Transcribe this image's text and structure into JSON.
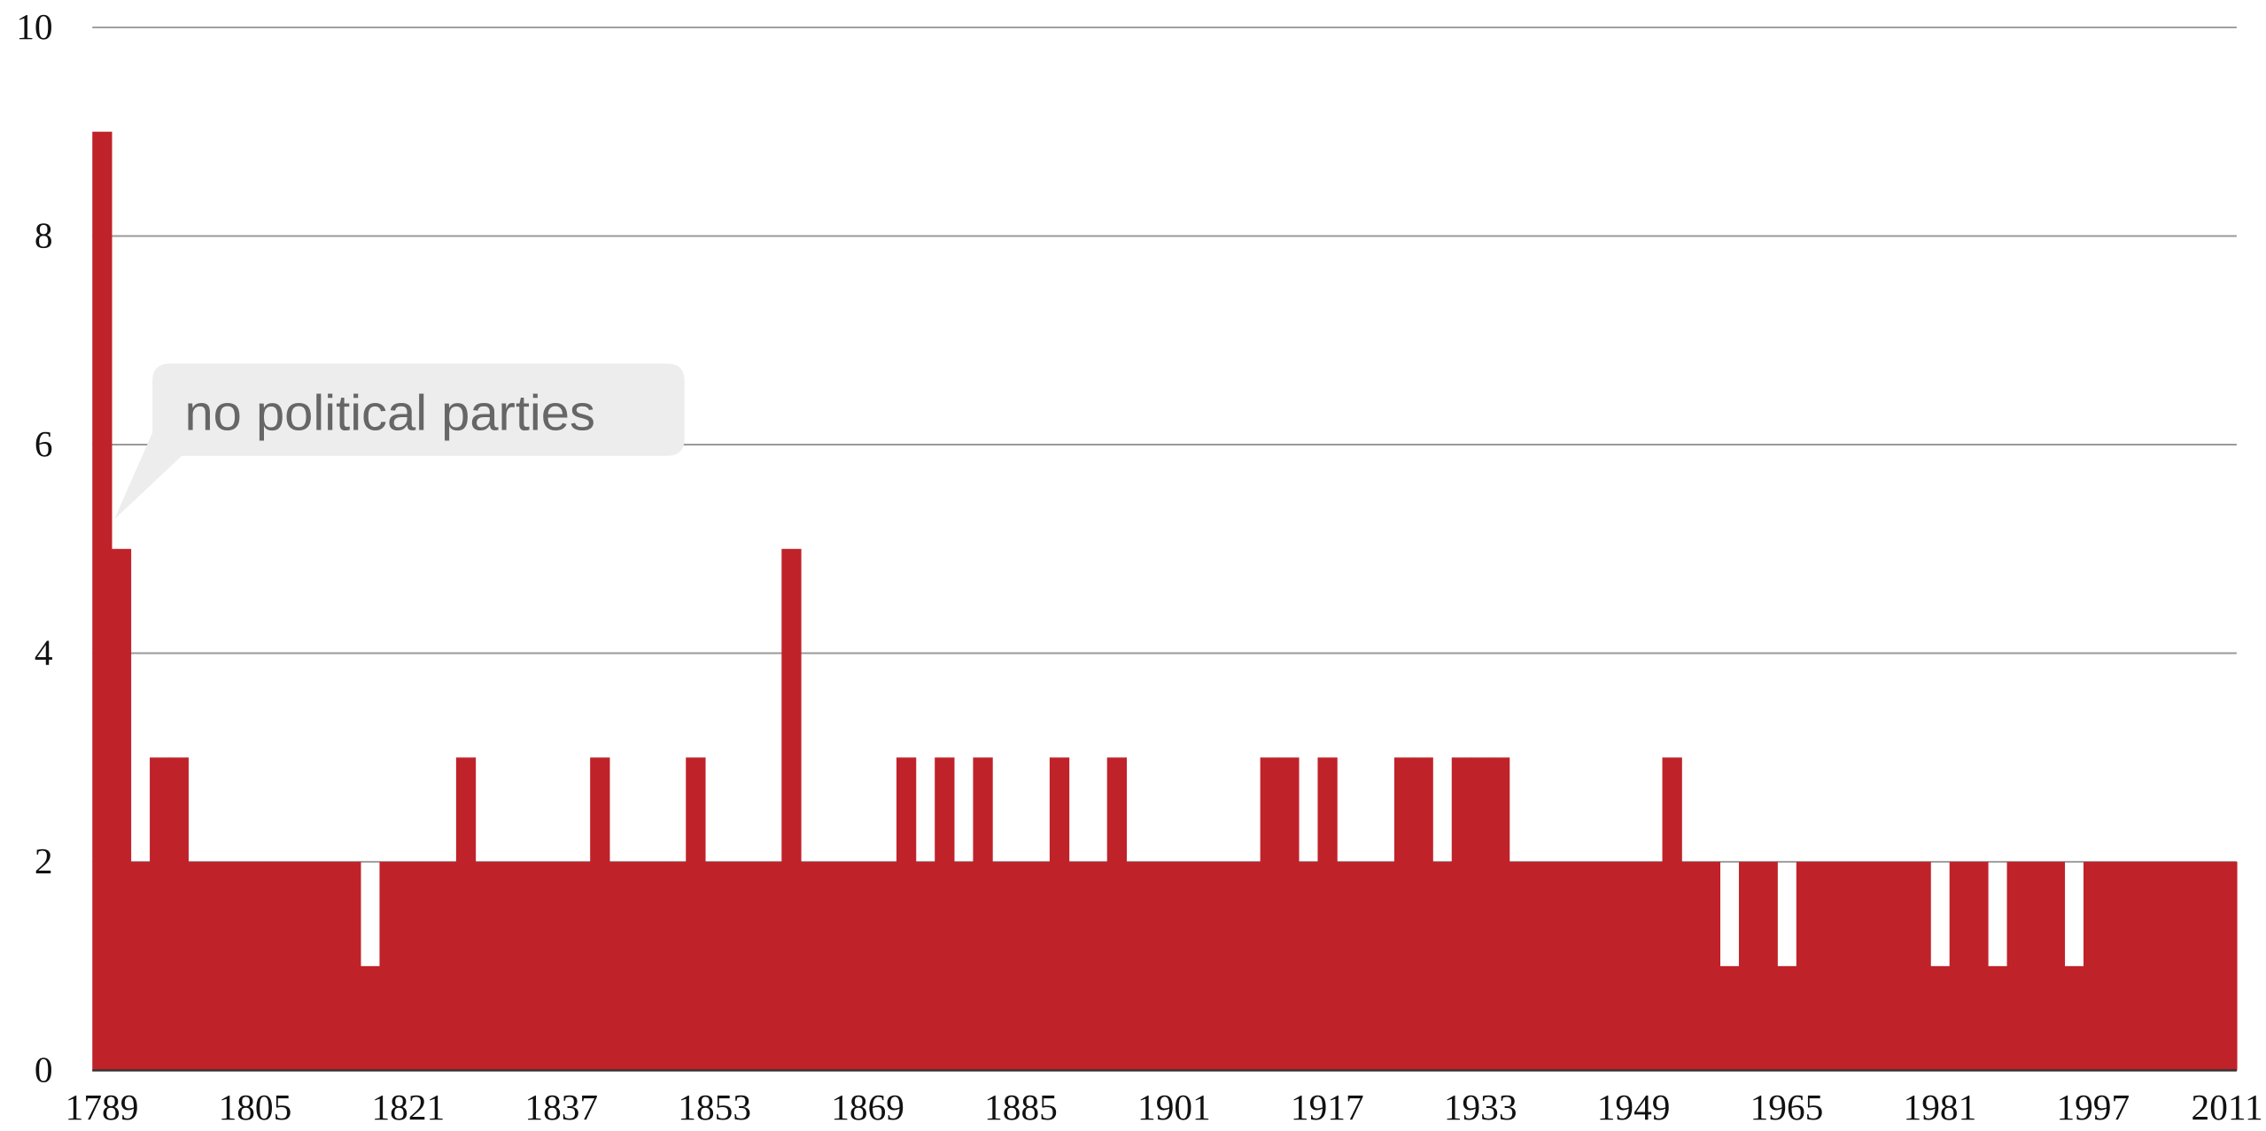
{
  "chart_data": {
    "type": "bar",
    "annotation": "no political parties",
    "color": "#c0222a",
    "grid": true,
    "ylim": [
      0,
      10
    ],
    "yticks": [
      0,
      2,
      4,
      6,
      8,
      10
    ],
    "categories": [
      "1789",
      null,
      null,
      null,
      null,
      null,
      null,
      null,
      "1805",
      null,
      null,
      null,
      null,
      null,
      null,
      null,
      "1821",
      null,
      null,
      null,
      null,
      null,
      null,
      null,
      "1837",
      null,
      null,
      null,
      null,
      null,
      null,
      null,
      "1853",
      null,
      null,
      null,
      null,
      null,
      null,
      null,
      "1869",
      null,
      null,
      null,
      null,
      null,
      null,
      null,
      "1885",
      null,
      null,
      null,
      null,
      null,
      null,
      null,
      "1901",
      null,
      null,
      null,
      null,
      null,
      null,
      null,
      "1917",
      null,
      null,
      null,
      null,
      null,
      null,
      null,
      "1933",
      null,
      null,
      null,
      null,
      null,
      null,
      null,
      "1949",
      null,
      null,
      null,
      null,
      null,
      null,
      null,
      "1965",
      null,
      null,
      null,
      null,
      null,
      null,
      null,
      "1981",
      null,
      null,
      null,
      null,
      null,
      null,
      null,
      "1997",
      null,
      null,
      null,
      null,
      null,
      null,
      "2011"
    ],
    "values": [
      9,
      5,
      2,
      3,
      3,
      2,
      2,
      2,
      2,
      2,
      2,
      2,
      2,
      2,
      1,
      2,
      2,
      2,
      2,
      3,
      2,
      2,
      2,
      2,
      2,
      2,
      3,
      2,
      2,
      2,
      2,
      3,
      2,
      2,
      2,
      2,
      5,
      2,
      2,
      2,
      2,
      2,
      3,
      2,
      3,
      2,
      3,
      2,
      2,
      2,
      3,
      2,
      2,
      3,
      2,
      2,
      2,
      2,
      2,
      2,
      2,
      3,
      3,
      2,
      3,
      2,
      2,
      2,
      3,
      3,
      2,
      3,
      3,
      3,
      2,
      2,
      2,
      2,
      2,
      2,
      2,
      2,
      3,
      2,
      2,
      1,
      2,
      2,
      1,
      2,
      2,
      2,
      2,
      2,
      2,
      2,
      1,
      2,
      2,
      1,
      2,
      2,
      2,
      1,
      2,
      2,
      2,
      2,
      2,
      2,
      2,
      2
    ]
  }
}
